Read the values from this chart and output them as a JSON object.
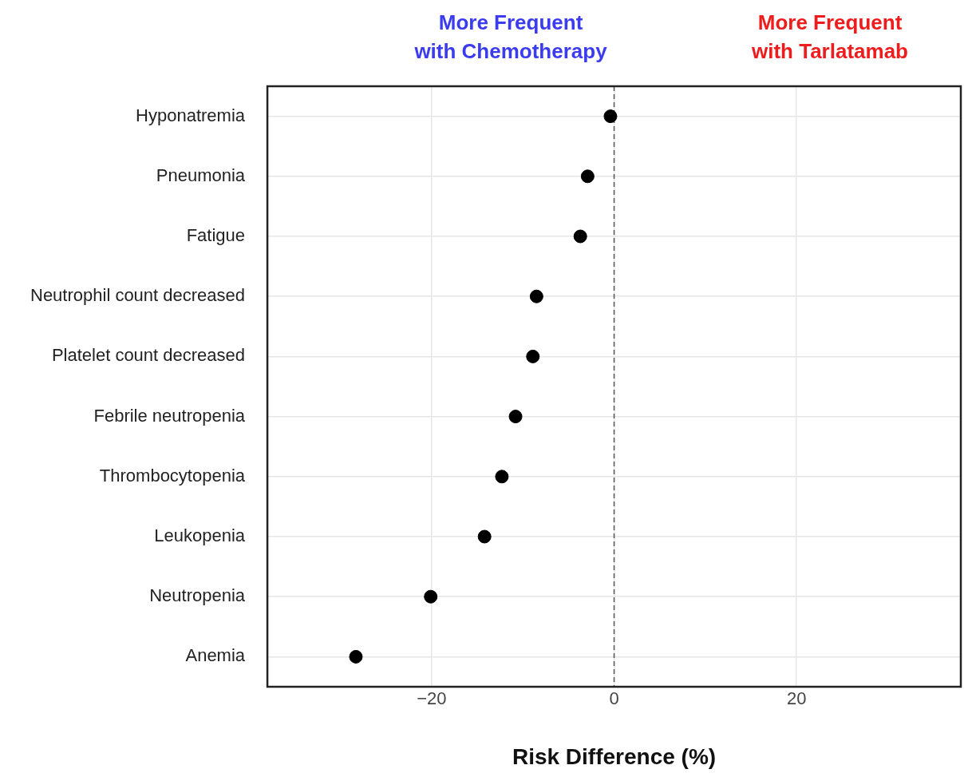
{
  "chart_data": {
    "type": "scatter",
    "xlabel": "Risk Difference (%)",
    "categories": [
      "Hyponatremia",
      "Pneumonia",
      "Fatigue",
      "Neutrophil count decreased",
      "Platelet count decreased",
      "Febrile neutropenia",
      "Thrombocytopenia",
      "Leukopenia",
      "Neutropenia",
      "Anemia"
    ],
    "orientation": "horizontal",
    "series": [
      {
        "color": "#000000",
        "values": [
          -0.4,
          -2.9,
          -3.7,
          -8.5,
          -8.9,
          -10.8,
          -12.3,
          -14.2,
          -20.1,
          -28.3
        ]
      }
    ],
    "xlim": [
      -38,
      38
    ],
    "xticks": [
      {
        "value": -20,
        "label": "−20"
      },
      0,
      20
    ],
    "grid": true,
    "marker": "circle",
    "legend": false,
    "ref_lines": [
      {
        "axis": "x",
        "value": 0,
        "line_style": "dashed"
      }
    ],
    "annotations": [
      "More Frequent\nwith Chemotherapy",
      "More Frequent\nwith Tarlatamab"
    ]
  }
}
